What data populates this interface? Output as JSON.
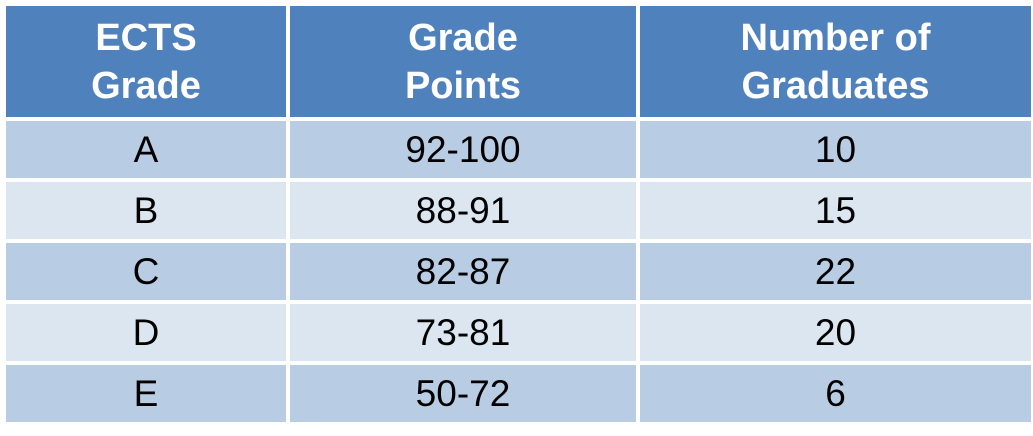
{
  "table": {
    "headers": [
      {
        "line1": "ECTS",
        "line2": "Grade"
      },
      {
        "line1": "Grade",
        "line2": "Points"
      },
      {
        "line1": "Number of",
        "line2": "Graduates"
      }
    ],
    "rows": [
      {
        "grade": "A",
        "points": "92-100",
        "graduates": "10"
      },
      {
        "grade": "B",
        "points": "88-91",
        "graduates": "15"
      },
      {
        "grade": "C",
        "points": "82-87",
        "graduates": "22"
      },
      {
        "grade": "D",
        "points": "73-81",
        "graduates": "20"
      },
      {
        "grade": "E",
        "points": "50-72",
        "graduates": "6"
      }
    ],
    "colors": {
      "header_bg": "#4f81bd",
      "row_dark": "#b8cce4",
      "row_light": "#dce6f1"
    }
  }
}
